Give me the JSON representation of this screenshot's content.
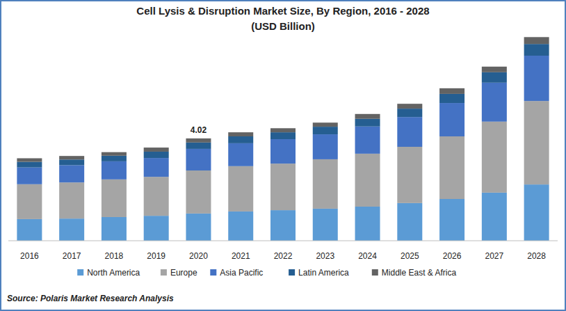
{
  "chart_data": {
    "type": "bar",
    "title": "Cell Lysis & Disruption Market Size, By Region, 2016 - 2028",
    "subtitle": "(USD Billion)",
    "source": "Source: Polaris Market Research Analysis",
    "categories": [
      "2016",
      "2017",
      "2018",
      "2019",
      "2020",
      "2021",
      "2022",
      "2023",
      "2024",
      "2025",
      "2026",
      "2027",
      "2028"
    ],
    "series": [
      {
        "name": "North America",
        "color": "#5b9bd5",
        "values": [
          0.85,
          0.87,
          0.93,
          0.98,
          1.07,
          1.15,
          1.2,
          1.26,
          1.34,
          1.48,
          1.64,
          1.89,
          2.21
        ]
      },
      {
        "name": "Europe",
        "color": "#a5a5a5",
        "values": [
          1.37,
          1.42,
          1.48,
          1.53,
          1.69,
          1.78,
          1.83,
          1.94,
          2.08,
          2.21,
          2.46,
          2.79,
          3.28
        ]
      },
      {
        "name": "Asia Pacific",
        "color": "#4472c4",
        "values": [
          0.66,
          0.68,
          0.71,
          0.74,
          0.85,
          0.9,
          0.96,
          0.98,
          1.07,
          1.17,
          1.31,
          1.53,
          1.78
        ]
      },
      {
        "name": "Latin America",
        "color": "#255e91",
        "values": [
          0.22,
          0.22,
          0.22,
          0.25,
          0.25,
          0.27,
          0.27,
          0.3,
          0.3,
          0.33,
          0.36,
          0.41,
          0.46
        ]
      },
      {
        "name": "Middle East & Africa",
        "color": "#636363",
        "values": [
          0.14,
          0.14,
          0.14,
          0.16,
          0.16,
          0.16,
          0.16,
          0.16,
          0.19,
          0.19,
          0.22,
          0.22,
          0.27
        ]
      }
    ],
    "annotations": [
      {
        "text": "4.02",
        "x": "2020",
        "y": 4.02
      }
    ],
    "ylim": [
      0,
      8.2
    ],
    "stacked": true,
    "legend": "bottom",
    "tick_labels": "x"
  }
}
